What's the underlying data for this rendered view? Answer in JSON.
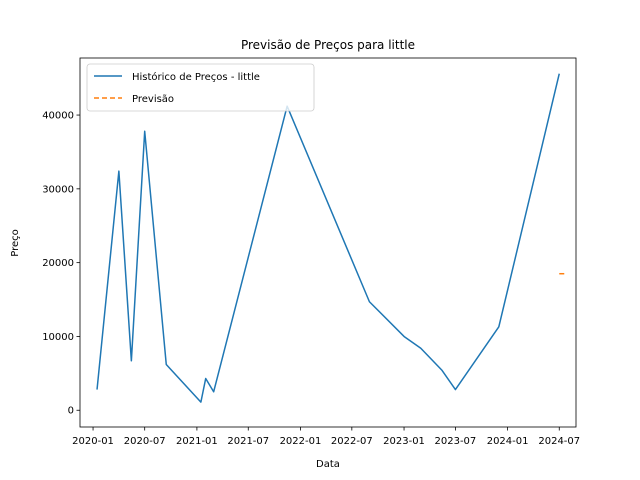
{
  "chart_data": {
    "type": "line",
    "title": "Previsão de Preços para little",
    "xlabel": "Data",
    "ylabel": "Preço",
    "xlim": [
      "2019-11-16",
      "2024-08-29"
    ],
    "ylim": [
      -2270,
      47730
    ],
    "x_ticks": [
      "2020-01",
      "2020-07",
      "2021-01",
      "2021-07",
      "2022-01",
      "2022-07",
      "2023-01",
      "2023-07",
      "2024-01",
      "2024-07"
    ],
    "y_ticks": [
      0,
      10000,
      20000,
      30000,
      40000
    ],
    "grid": false,
    "legend_position": "top-left",
    "series": [
      {
        "name": "Histórico de Preços - little",
        "color": "#1f77b4",
        "style": "solid",
        "points": [
          {
            "x": "2020-01-15",
            "y": 2800
          },
          {
            "x": "2020-04-01",
            "y": 32400
          },
          {
            "x": "2020-05-15",
            "y": 6700
          },
          {
            "x": "2020-07-01",
            "y": 37800
          },
          {
            "x": "2020-09-15",
            "y": 6200
          },
          {
            "x": "2021-01-15",
            "y": 1100
          },
          {
            "x": "2021-02-01",
            "y": 4300
          },
          {
            "x": "2021-03-01",
            "y": 2500
          },
          {
            "x": "2021-11-15",
            "y": 41200
          },
          {
            "x": "2022-09-01",
            "y": 14700
          },
          {
            "x": "2023-01-01",
            "y": 10000
          },
          {
            "x": "2023-03-01",
            "y": 8400
          },
          {
            "x": "2023-05-15",
            "y": 5400
          },
          {
            "x": "2023-07-01",
            "y": 2800
          },
          {
            "x": "2023-12-01",
            "y": 11300
          },
          {
            "x": "2024-07-01",
            "y": 45600
          }
        ]
      },
      {
        "name": "Previsão",
        "color": "#ff7f0e",
        "style": "dashed",
        "points": [
          {
            "x": "2024-07-01",
            "y": 18500
          },
          {
            "x": "2024-07-25",
            "y": 18500
          }
        ]
      }
    ]
  }
}
